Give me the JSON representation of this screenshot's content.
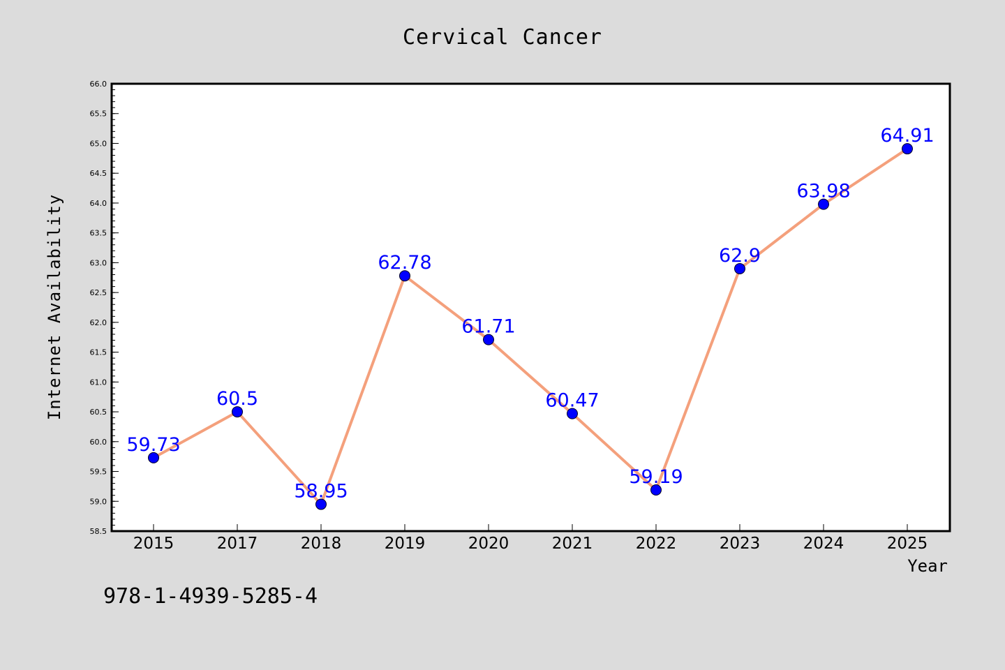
{
  "colors": {
    "background": "#dcdcdc",
    "plot_background": "#ffffff",
    "line": "#f4a07c",
    "marker": "#0000ff",
    "data_label": "#0000ff",
    "axis": "#000000"
  },
  "footer": {
    "isbn": "978-1-4939-5285-4"
  },
  "chart_data": {
    "type": "line",
    "title": "Cervical Cancer",
    "xlabel": "Year",
    "ylabel": "Internet Availability",
    "categories": [
      "2015",
      "2017",
      "2018",
      "2019",
      "2020",
      "2021",
      "2022",
      "2023",
      "2024",
      "2025"
    ],
    "values": [
      59.73,
      60.5,
      58.95,
      62.78,
      61.71,
      60.47,
      59.19,
      62.9,
      63.98,
      64.91
    ],
    "data_labels": [
      "59.73",
      "60.5",
      "58.95",
      "62.78",
      "61.71",
      "60.47",
      "59.19",
      "62.9",
      "63.98",
      "64.91"
    ],
    "ylim": [
      58.5,
      66.0
    ],
    "yticks": [
      "58.5",
      "59.0",
      "59.5",
      "60.0",
      "60.5",
      "61.0",
      "61.5",
      "62.0",
      "62.5",
      "63.0",
      "63.5",
      "64.0",
      "64.5",
      "65.0",
      "65.5",
      "66.0"
    ],
    "grid": false,
    "markers": true
  }
}
